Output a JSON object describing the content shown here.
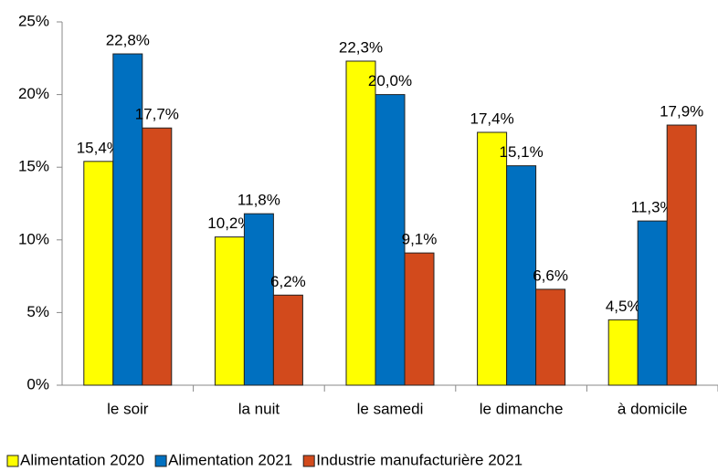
{
  "chart_data": {
    "type": "bar",
    "categories": [
      "le soir",
      "la nuit",
      "le samedi",
      "le dimanche",
      "à domicile"
    ],
    "series": [
      {
        "name": "Alimentation 2020",
        "color": "#ffff00",
        "values": [
          15.4,
          10.2,
          22.3,
          17.4,
          4.5
        ],
        "value_labels": [
          "15,4%",
          "10,2%",
          "22,3%",
          "17,4%",
          "4,5%"
        ]
      },
      {
        "name": "Alimentation 2021",
        "color": "#0070c0",
        "values": [
          22.8,
          11.8,
          20.0,
          15.1,
          11.3
        ],
        "value_labels": [
          "22,8%",
          "11,8%",
          "20,0%",
          "15,1%",
          "11,3%"
        ]
      },
      {
        "name": "Industrie manufacturière 2021",
        "color": "#d24a1c",
        "values": [
          17.7,
          6.2,
          9.1,
          6.6,
          17.9
        ],
        "value_labels": [
          "17,7%",
          "6,2%",
          "9,1%",
          "6,6%",
          "17,9%"
        ]
      }
    ],
    "ylim": [
      0,
      25
    ],
    "yticks": [
      {
        "value": 0,
        "label": "0%"
      },
      {
        "value": 5,
        "label": "5%"
      },
      {
        "value": 10,
        "label": "10%"
      },
      {
        "value": 15,
        "label": "15%"
      },
      {
        "value": 20,
        "label": "20%"
      },
      {
        "value": 25,
        "label": "25%"
      }
    ],
    "grid": false,
    "legend": "bottom"
  }
}
